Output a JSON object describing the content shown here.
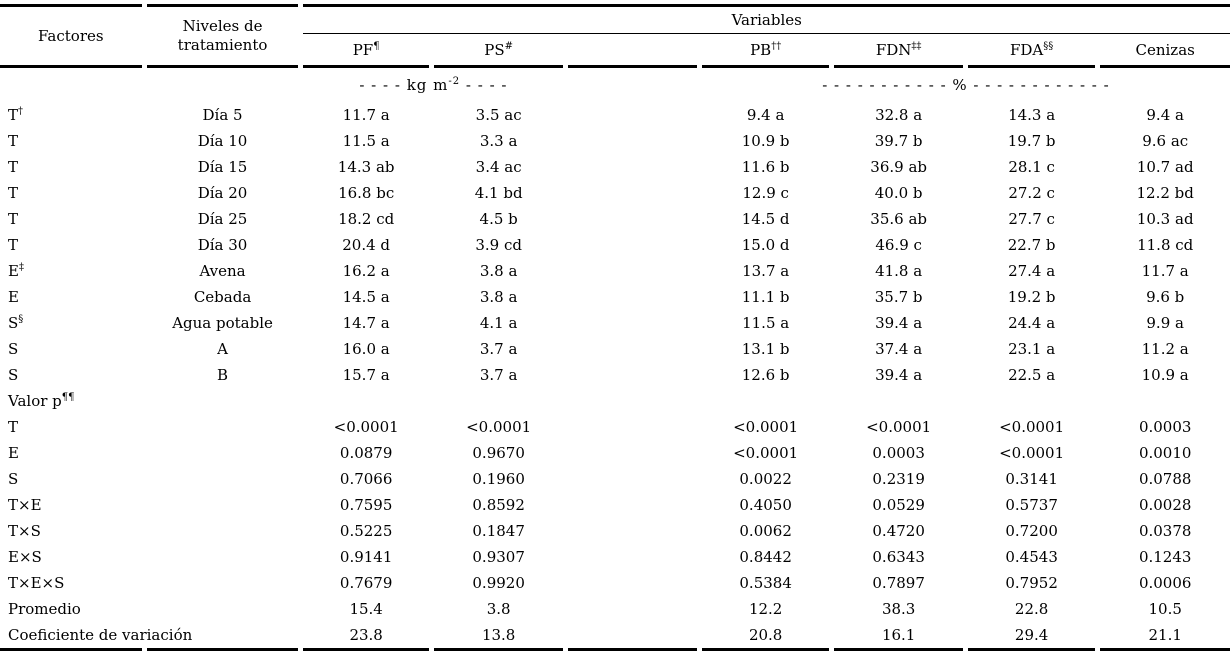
{
  "header": {
    "factores": "Factores",
    "niveles_line1": "Niveles de",
    "niveles_line2": "tratamiento",
    "variables": "Variables",
    "columns": [
      {
        "text": "PF",
        "sup": "¶"
      },
      {
        "text": "PS",
        "sup": "#"
      },
      {
        "text": "",
        "sup": ""
      },
      {
        "text": "PB",
        "sup": "††"
      },
      {
        "text": "FDN",
        "sup": "‡‡"
      },
      {
        "text": "FDA",
        "sup": "§§"
      },
      {
        "text": "Cenizas",
        "sup": ""
      }
    ]
  },
  "units": {
    "kg": {
      "pre": "- - - -  kg m",
      "sup": "-2",
      "post": "  - - - -"
    },
    "pct": "- - - - - - - - - - -  %  - - - - - - - - - - - -"
  },
  "rows": [
    {
      "factor": "T",
      "factor_sup": "†",
      "level": "Día 5",
      "values": [
        "11.7 a",
        "3.5 ac",
        "9.4 a",
        "32.8 a",
        "14.3 a",
        "9.4 a"
      ]
    },
    {
      "factor": "T",
      "factor_sup": "",
      "level": "Día 10",
      "values": [
        "11.5 a",
        "3.3 a",
        "10.9 b",
        "39.7 b",
        "19.7 b",
        "9.6 ac"
      ]
    },
    {
      "factor": "T",
      "factor_sup": "",
      "level": "Día 15",
      "values": [
        "14.3 ab",
        "3.4 ac",
        "11.6 b",
        "36.9 ab",
        "28.1 c",
        "10.7 ad"
      ]
    },
    {
      "factor": "T",
      "factor_sup": "",
      "level": "Día 20",
      "values": [
        "16.8 bc",
        "4.1 bd",
        "12.9 c",
        "40.0 b",
        "27.2 c",
        "12.2 bd"
      ]
    },
    {
      "factor": "T",
      "factor_sup": "",
      "level": "Día 25",
      "values": [
        "18.2 cd",
        "4.5 b",
        "14.5 d",
        "35.6 ab",
        "27.7 c",
        "10.3 ad"
      ]
    },
    {
      "factor": "T",
      "factor_sup": "",
      "level": "Día 30",
      "values": [
        "20.4 d",
        "3.9 cd",
        "15.0 d",
        "46.9 c",
        "22.7 b",
        "11.8 cd"
      ]
    },
    {
      "factor": "E",
      "factor_sup": "‡",
      "level": "Avena",
      "values": [
        "16.2 a",
        "3.8 a",
        "13.7 a",
        "41.8 a",
        "27.4 a",
        "11.7 a"
      ]
    },
    {
      "factor": "E",
      "factor_sup": "",
      "level": "Cebada",
      "values": [
        "14.5 a",
        "3.8 a",
        "11.1 b",
        "35.7 b",
        "19.2 b",
        "9.6 b"
      ]
    },
    {
      "factor": "S",
      "factor_sup": "§",
      "level": "Agua potable",
      "values": [
        "14.7 a",
        "4.1 a",
        "11.5 a",
        "39.4 a",
        "24.4 a",
        "9.9 a"
      ]
    },
    {
      "factor": "S",
      "factor_sup": "",
      "level": "A",
      "values": [
        "16.0 a",
        "3.7 a",
        "13.1 b",
        "37.4 a",
        "23.1 a",
        "11.2 a"
      ]
    },
    {
      "factor": "S",
      "factor_sup": "",
      "level": "B",
      "values": [
        "15.7 a",
        "3.7 a",
        "12.6 b",
        "39.4 a",
        "22.5 a",
        "10.9 a"
      ]
    },
    {
      "factor": "Valor p",
      "factor_sup": "¶¶",
      "level": "",
      "values": [
        "",
        "",
        "",
        "",
        "",
        ""
      ]
    },
    {
      "factor": "T",
      "factor_sup": "",
      "level": "",
      "values": [
        "<0.0001",
        "<0.0001",
        "<0.0001",
        "<0.0001",
        "<0.0001",
        "0.0003"
      ]
    },
    {
      "factor": "E",
      "factor_sup": "",
      "level": "",
      "values": [
        "0.0879",
        "0.9670",
        "<0.0001",
        "0.0003",
        "<0.0001",
        "0.0010"
      ]
    },
    {
      "factor": "S",
      "factor_sup": "",
      "level": "",
      "values": [
        "0.7066",
        "0.1960",
        "0.0022",
        "0.2319",
        "0.3141",
        "0.0788"
      ]
    },
    {
      "factor": "T×E",
      "factor_sup": "",
      "level": "",
      "values": [
        "0.7595",
        "0.8592",
        "0.4050",
        "0.0529",
        "0.5737",
        "0.0028"
      ]
    },
    {
      "factor": "T×S",
      "factor_sup": "",
      "level": "",
      "values": [
        "0.5225",
        "0.1847",
        "0.0062",
        "0.4720",
        "0.7200",
        "0.0378"
      ]
    },
    {
      "factor": "E×S",
      "factor_sup": "",
      "level": "",
      "values": [
        "0.9141",
        "0.9307",
        "0.8442",
        "0.6343",
        "0.4543",
        "0.1243"
      ]
    },
    {
      "factor": "T×E×S",
      "factor_sup": "",
      "level": "",
      "values": [
        "0.7679",
        "0.9920",
        "0.5384",
        "0.7897",
        "0.7952",
        "0.0006"
      ]
    },
    {
      "factor": "Promedio",
      "factor_sup": "",
      "level": "",
      "values": [
        "15.4",
        "3.8",
        "12.2",
        "38.3",
        "22.8",
        "10.5"
      ]
    },
    {
      "factor": "Coeficiente de variación",
      "factor_sup": "",
      "level": "",
      "values": [
        "23.8",
        "13.8",
        "20.8",
        "16.1",
        "29.4",
        "21.1"
      ]
    }
  ]
}
